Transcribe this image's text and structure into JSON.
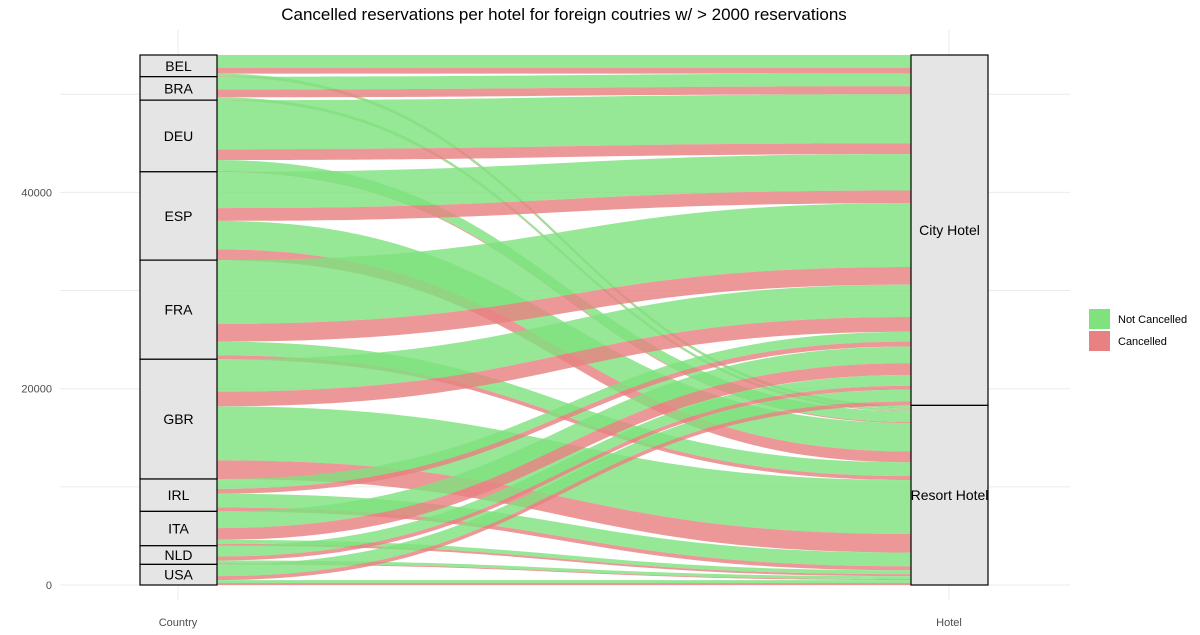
{
  "chart_data": {
    "type": "alluvial",
    "title": "Cancelled reservations per hotel for foreign coutries w/ > 2000 reservations",
    "axes": [
      "Country",
      "Hotel"
    ],
    "y_ticks": [
      0,
      20000,
      40000
    ],
    "ylim": [
      0,
      55000
    ],
    "grid": true,
    "legend_position": "right",
    "colors": {
      "Not Cancelled": "#7fe27f",
      "Cancelled": "#e88181"
    },
    "legend": [
      "Not Cancelled",
      "Cancelled"
    ],
    "countries": [
      "BEL",
      "BRA",
      "DEU",
      "ESP",
      "FRA",
      "GBR",
      "IRL",
      "ITA",
      "NLD",
      "USA"
    ],
    "hotels": [
      "City Hotel",
      "Resort Hotel"
    ],
    "flows": [
      {
        "country": "BEL",
        "status": "Not Cancelled",
        "hotel": "City Hotel",
        "value": 1300
      },
      {
        "country": "BEL",
        "status": "Cancelled",
        "hotel": "City Hotel",
        "value": 600
      },
      {
        "country": "BEL",
        "status": "Not Cancelled",
        "hotel": "Resort Hotel",
        "value": 250
      },
      {
        "country": "BEL",
        "status": "Cancelled",
        "hotel": "Resort Hotel",
        "value": 60
      },
      {
        "country": "BRA",
        "status": "Not Cancelled",
        "hotel": "City Hotel",
        "value": 1300
      },
      {
        "country": "BRA",
        "status": "Cancelled",
        "hotel": "City Hotel",
        "value": 800
      },
      {
        "country": "BRA",
        "status": "Not Cancelled",
        "hotel": "Resort Hotel",
        "value": 240
      },
      {
        "country": "BRA",
        "status": "Cancelled",
        "hotel": "Resort Hotel",
        "value": 50
      },
      {
        "country": "DEU",
        "status": "Not Cancelled",
        "hotel": "City Hotel",
        "value": 5000
      },
      {
        "country": "DEU",
        "status": "Cancelled",
        "hotel": "City Hotel",
        "value": 1100
      },
      {
        "country": "DEU",
        "status": "Not Cancelled",
        "hotel": "Resort Hotel",
        "value": 1100
      },
      {
        "country": "DEU",
        "status": "Cancelled",
        "hotel": "Resort Hotel",
        "value": 100
      },
      {
        "country": "ESP",
        "status": "Not Cancelled",
        "hotel": "City Hotel",
        "value": 3700
      },
      {
        "country": "ESP",
        "status": "Cancelled",
        "hotel": "City Hotel",
        "value": 1300
      },
      {
        "country": "ESP",
        "status": "Not Cancelled",
        "hotel": "Resort Hotel",
        "value": 2900
      },
      {
        "country": "ESP",
        "status": "Cancelled",
        "hotel": "Resort Hotel",
        "value": 1100
      },
      {
        "country": "FRA",
        "status": "Not Cancelled",
        "hotel": "City Hotel",
        "value": 6500
      },
      {
        "country": "FRA",
        "status": "Cancelled",
        "hotel": "City Hotel",
        "value": 1800
      },
      {
        "country": "FRA",
        "status": "Not Cancelled",
        "hotel": "Resort Hotel",
        "value": 1400
      },
      {
        "country": "FRA",
        "status": "Cancelled",
        "hotel": "Resort Hotel",
        "value": 400
      },
      {
        "country": "GBR",
        "status": "Not Cancelled",
        "hotel": "City Hotel",
        "value": 3300
      },
      {
        "country": "GBR",
        "status": "Cancelled",
        "hotel": "City Hotel",
        "value": 1500
      },
      {
        "country": "GBR",
        "status": "Not Cancelled",
        "hotel": "Resort Hotel",
        "value": 5500
      },
      {
        "country": "GBR",
        "status": "Cancelled",
        "hotel": "Resort Hotel",
        "value": 1900
      },
      {
        "country": "IRL",
        "status": "Not Cancelled",
        "hotel": "City Hotel",
        "value": 1000
      },
      {
        "country": "IRL",
        "status": "Cancelled",
        "hotel": "City Hotel",
        "value": 500
      },
      {
        "country": "IRL",
        "status": "Not Cancelled",
        "hotel": "Resort Hotel",
        "value": 1400
      },
      {
        "country": "IRL",
        "status": "Cancelled",
        "hotel": "Resort Hotel",
        "value": 400
      },
      {
        "country": "ITA",
        "status": "Not Cancelled",
        "hotel": "City Hotel",
        "value": 1700
      },
      {
        "country": "ITA",
        "status": "Cancelled",
        "hotel": "City Hotel",
        "value": 1200
      },
      {
        "country": "ITA",
        "status": "Not Cancelled",
        "hotel": "Resort Hotel",
        "value": 400
      },
      {
        "country": "ITA",
        "status": "Cancelled",
        "hotel": "Resort Hotel",
        "value": 200
      },
      {
        "country": "NLD",
        "status": "Not Cancelled",
        "hotel": "City Hotel",
        "value": 1100
      },
      {
        "country": "NLD",
        "status": "Cancelled",
        "hotel": "City Hotel",
        "value": 400
      },
      {
        "country": "NLD",
        "status": "Not Cancelled",
        "hotel": "Resort Hotel",
        "value": 300
      },
      {
        "country": "NLD",
        "status": "Cancelled",
        "hotel": "Resort Hotel",
        "value": 100
      },
      {
        "country": "USA",
        "status": "Not Cancelled",
        "hotel": "City Hotel",
        "value": 1200
      },
      {
        "country": "USA",
        "status": "Cancelled",
        "hotel": "City Hotel",
        "value": 400
      },
      {
        "country": "USA",
        "status": "Not Cancelled",
        "hotel": "Resort Hotel",
        "value": 300
      },
      {
        "country": "USA",
        "status": "Cancelled",
        "hotel": "Resort Hotel",
        "value": 200
      }
    ]
  }
}
